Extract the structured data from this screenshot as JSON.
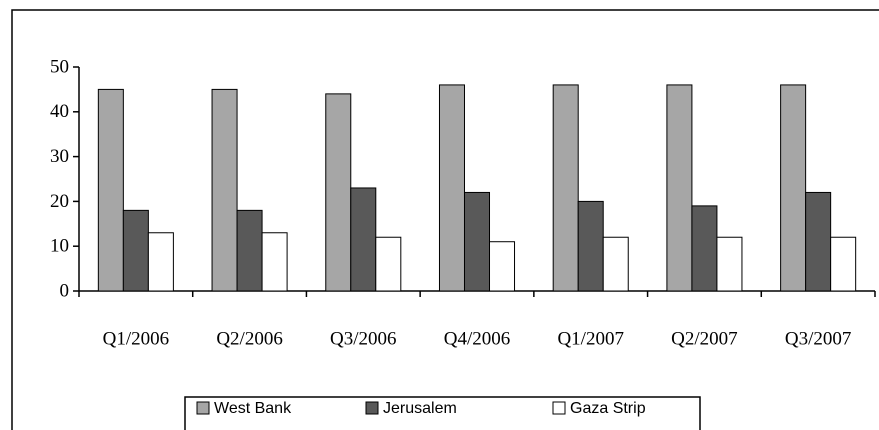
{
  "chart_data": {
    "type": "bar",
    "categories": [
      "Q1/2006",
      "Q2/2006",
      "Q3/2006",
      "Q4/2006",
      "Q1/2007",
      "Q2/2007",
      "Q3/2007"
    ],
    "series": [
      {
        "name": "West Bank",
        "color": "#a6a6a6",
        "values": [
          45,
          45,
          44,
          46,
          46,
          46,
          46
        ]
      },
      {
        "name": "Jerusalem",
        "color": "#595959",
        "values": [
          18,
          18,
          23,
          22,
          20,
          19,
          22
        ]
      },
      {
        "name": "Gaza Strip",
        "color": "#ffffff",
        "values": [
          13,
          13,
          12,
          11,
          12,
          12,
          12
        ]
      }
    ],
    "ylim": [
      0,
      50
    ],
    "yticks": [
      0,
      10,
      20,
      30,
      40,
      50
    ],
    "grid": false,
    "legend": "bottom"
  }
}
